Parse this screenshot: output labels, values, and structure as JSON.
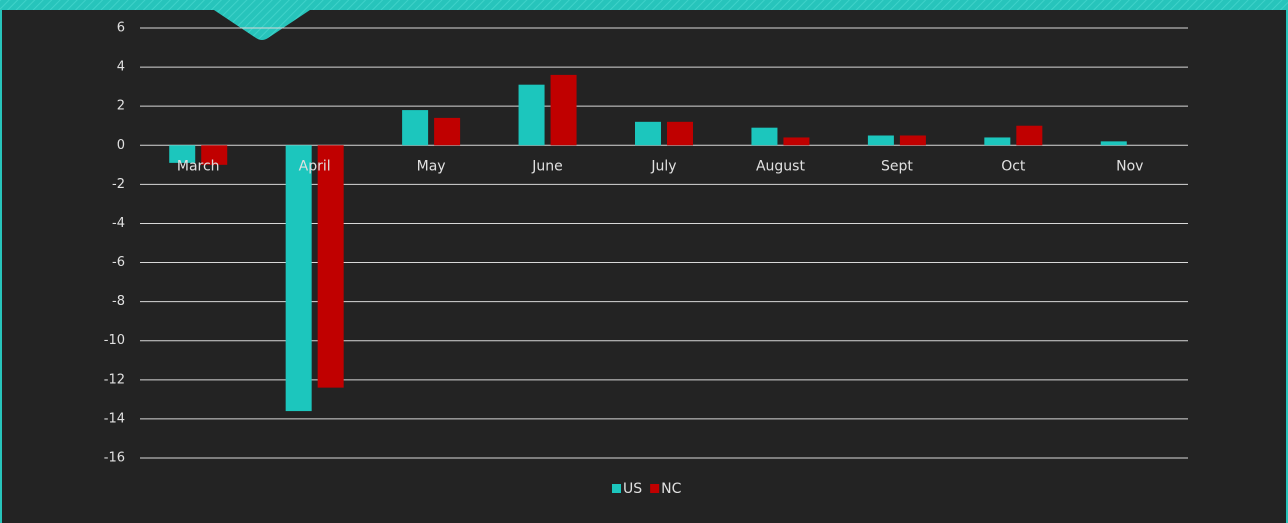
{
  "chart_data": {
    "type": "bar",
    "categories": [
      "March",
      "April",
      "May",
      "June",
      "July",
      "August",
      "Sept",
      "Oct",
      "Nov"
    ],
    "series": [
      {
        "name": "US",
        "color": "#1cc6bd",
        "values": [
          -0.9,
          -13.6,
          1.8,
          3.1,
          1.2,
          0.9,
          0.5,
          0.4,
          0.2
        ]
      },
      {
        "name": "NC",
        "color": "#c00000",
        "values": [
          -1.0,
          -12.4,
          1.4,
          3.6,
          1.2,
          0.4,
          0.5,
          1.0,
          0
        ]
      }
    ],
    "ylim": [
      -16,
      6
    ],
    "yticks": [
      -16,
      -14,
      -12,
      -10,
      -8,
      -6,
      -4,
      -2,
      0,
      2,
      4,
      6
    ],
    "grid": true,
    "legend": "bottom"
  }
}
